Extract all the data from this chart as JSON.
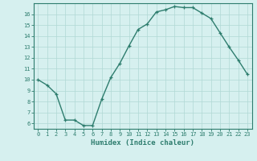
{
  "x": [
    0,
    1,
    2,
    3,
    4,
    5,
    6,
    7,
    8,
    9,
    10,
    11,
    12,
    13,
    14,
    15,
    16,
    17,
    18,
    19,
    20,
    21,
    22,
    23
  ],
  "y": [
    10.0,
    9.5,
    8.7,
    6.3,
    6.3,
    5.8,
    5.8,
    8.2,
    10.2,
    11.5,
    13.1,
    14.6,
    15.1,
    16.2,
    16.4,
    16.7,
    16.6,
    16.6,
    16.1,
    15.6,
    14.3,
    13.0,
    11.8,
    10.5
  ],
  "line_color": "#2e7d6e",
  "marker": "+",
  "bg_color": "#d6f0ef",
  "grid_color": "#b0d8d5",
  "xlabel": "Humidex (Indice chaleur)",
  "xlim": [
    -0.5,
    23.5
  ],
  "ylim": [
    5.5,
    17.0
  ],
  "yticks": [
    6,
    7,
    8,
    9,
    10,
    11,
    12,
    13,
    14,
    15,
    16
  ],
  "xticks": [
    0,
    1,
    2,
    3,
    4,
    5,
    6,
    7,
    8,
    9,
    10,
    11,
    12,
    13,
    14,
    15,
    16,
    17,
    18,
    19,
    20,
    21,
    22,
    23
  ],
  "line_width": 1.0,
  "marker_size": 3.5,
  "tick_fontsize": 5.0,
  "xlabel_fontsize": 6.5
}
